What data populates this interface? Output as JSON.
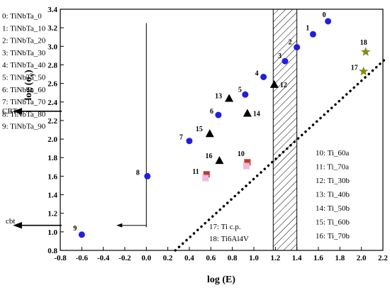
{
  "chart_data": {
    "type": "scatter",
    "xlabel": "log (E)",
    "ylabel": "log (σ",
    "ylabel_sub": "y",
    "ylabel_close": ")",
    "xlim": [
      -0.8,
      2.2
    ],
    "ylim": [
      0.8,
      3.4
    ],
    "x_ticks": [
      "-0.8",
      "-0.6",
      "-0.4",
      "-0.2",
      "0.0",
      "0.2",
      "0.4",
      "0.6",
      "0.8",
      "1.0",
      "1.2",
      "1.4",
      "1.6",
      "1.8",
      "2.0",
      "2.2"
    ],
    "y_ticks": [
      "0.8",
      "1.0",
      "1.2",
      "1.4",
      "1.6",
      "1.8",
      "2.0",
      "2.2",
      "2.4",
      "2.6",
      "2.8",
      "3.0",
      "3.2",
      "3.4"
    ],
    "legend_left": [
      "0: TiNbTa_0",
      "1: TiNbTa_10",
      "2: TiNbTa_20",
      "3: TiNbTa_30",
      "4: TiNbTa_40",
      "5: TiNbTa_50",
      "6: TiNbTa_60",
      "7: TiNbTa_70",
      "8: TiNbTa_80",
      "9: TiNbTa_90"
    ],
    "legend_right": [
      "10: Ti_60a",
      "11: Ti_70a",
      "12: Ti_30b",
      "13: Ti_40b",
      "14: Ti_50b",
      "15: Ti_60b",
      "16: Ti_70b"
    ],
    "legend_bottom": [
      "17: Ti c.p.",
      "18: Ti6Al4V"
    ],
    "side_labels": {
      "upper": "CBT",
      "lower": "cbt"
    },
    "series": [
      {
        "marker": "circle",
        "color": "#1f1fe0",
        "points": [
          {
            "label": "0",
            "x": 1.69,
            "y": 3.27
          },
          {
            "label": "1",
            "x": 1.55,
            "y": 3.13
          },
          {
            "label": "2",
            "x": 1.4,
            "y": 2.99
          },
          {
            "label": "3",
            "x": 1.29,
            "y": 2.84
          },
          {
            "label": "4",
            "x": 1.09,
            "y": 2.67
          },
          {
            "label": "5",
            "x": 0.92,
            "y": 2.48
          },
          {
            "label": "6",
            "x": 0.67,
            "y": 2.26
          },
          {
            "label": "7",
            "x": 0.4,
            "y": 1.98
          },
          {
            "label": "8",
            "x": 0.01,
            "y": 1.6
          },
          {
            "label": "9",
            "x": -0.6,
            "y": 0.97
          }
        ]
      },
      {
        "marker": "square",
        "color": "#c0392b",
        "points": [
          {
            "label": "10",
            "x": 0.94,
            "y": 1.75
          },
          {
            "label": "11",
            "x": 0.56,
            "y": 1.62
          }
        ]
      },
      {
        "marker": "square",
        "color": "#f3b6e0",
        "label_hidden": true,
        "points": [
          {
            "label": "",
            "x": 0.93,
            "y": 1.71
          },
          {
            "label": "",
            "x": 0.55,
            "y": 1.58
          }
        ]
      },
      {
        "marker": "triangle",
        "color": "#000000",
        "points": [
          {
            "label": "12",
            "x": 1.19,
            "y": 2.59
          },
          {
            "label": "13",
            "x": 0.77,
            "y": 2.44
          },
          {
            "label": "14",
            "x": 0.94,
            "y": 2.28
          },
          {
            "label": "15",
            "x": 0.59,
            "y": 2.06
          },
          {
            "label": "16",
            "x": 0.68,
            "y": 1.77
          }
        ]
      },
      {
        "marker": "star",
        "color": "#8a8a1a",
        "points": [
          {
            "label": "17",
            "x": 2.02,
            "y": 2.73
          },
          {
            "label": "18",
            "x": 2.04,
            "y": 2.94
          }
        ]
      }
    ],
    "hatched_band": {
      "x_from": 1.18,
      "x_to": 1.4
    },
    "dotted_line": {
      "x1": 0.27,
      "y1": 0.8,
      "x2": 2.22,
      "y2": 2.86
    },
    "vertical_line": {
      "x": 0.0,
      "y_from": 1.05,
      "y_to": 3.25
    },
    "arrow_upper": {
      "y": 2.3
    },
    "arrow_lower": {
      "y": 1.07,
      "x_from": 0.0,
      "x_to": -0.27
    }
  }
}
